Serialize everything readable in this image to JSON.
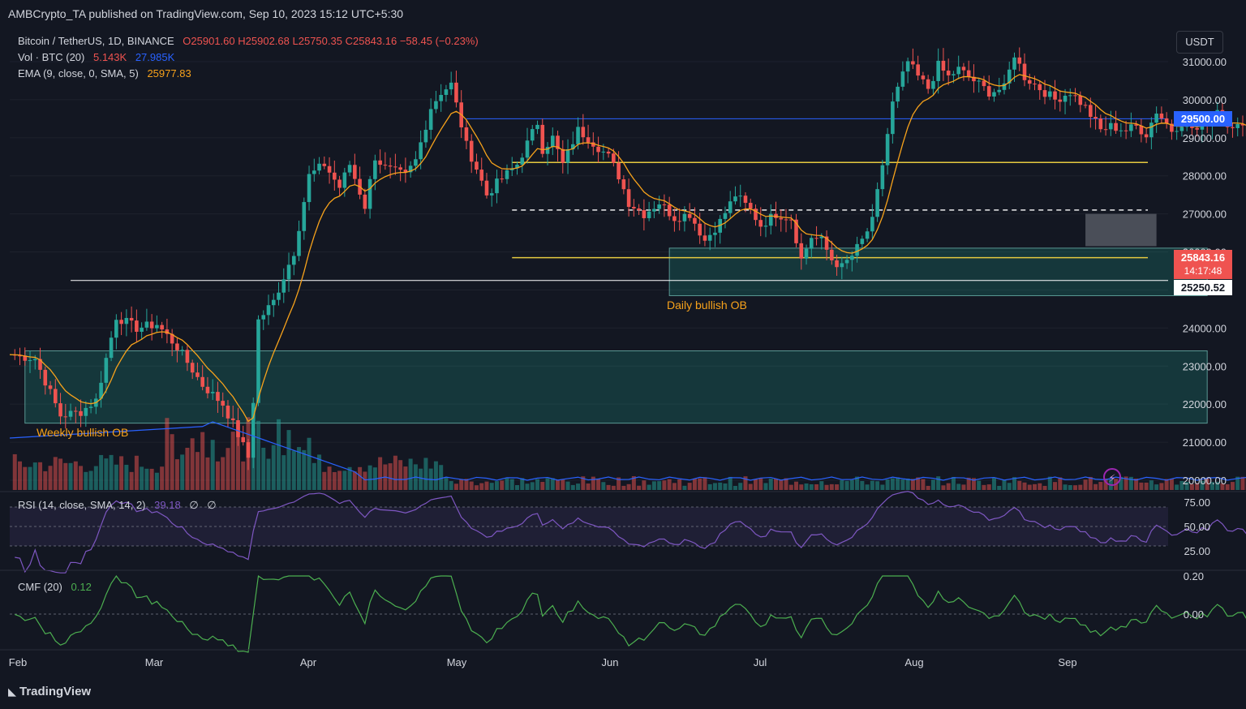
{
  "header": {
    "publisher": "AMBCrypto_TA published on TradingView.com, Sep 10, 2023 15:12 UTC+5:30",
    "symbol": "Bitcoin / TetherUS, 1D, BINANCE",
    "ohlc": {
      "o": "O25901.60",
      "h": "H25902.68",
      "l": "L25750.35",
      "c": "C25843.16",
      "chg": "−58.45 (−0.23%)"
    },
    "vol": {
      "label": "Vol · BTC (20)",
      "v1": "5.143K",
      "v2": "27.985K"
    },
    "ema": {
      "label": "EMA (9, close, 0, SMA, 5)",
      "value": "25977.83"
    }
  },
  "currency_button": "USDT",
  "price_axis": [
    "31000.00",
    "30000.00",
    "29000.00",
    "28000.00",
    "27000.00",
    "26000.00",
    "25000.00",
    "24000.00",
    "23000.00",
    "22000.00",
    "21000.00",
    "20000.00"
  ],
  "price_tags": {
    "level_29500": "29500.00",
    "last_price": "25843.16",
    "countdown": "14:17:48",
    "level_25250": "25250.52"
  },
  "annotations": {
    "daily_ob": "Daily bullish OB",
    "weekly_ob": "Weekly bullish OB"
  },
  "rsi": {
    "label": "RSI (14, close, SMA, 14, 2)",
    "value": "39.18",
    "extra1": "∅",
    "extra2": "∅",
    "axis": [
      "75.00",
      "50.00",
      "25.00"
    ]
  },
  "cmf": {
    "label": "CMF (20)",
    "value": "0.12",
    "axis": [
      "0.20",
      "0.00"
    ]
  },
  "time_axis": [
    "Feb",
    "Mar",
    "Apr",
    "May",
    "Jun",
    "Jul",
    "Aug",
    "Sep"
  ],
  "footer": {
    "logo": "TradingView"
  },
  "colors": {
    "bg": "#131722",
    "up": "#26a69a",
    "down": "#ef5350",
    "ema": "#f7a21b",
    "rsi": "#7e57c2",
    "cmf": "#4caf50",
    "yellow": "#e5c940",
    "blue": "#2962ff",
    "vol_ma": "#2962ff"
  },
  "chart_data": {
    "type": "candlestick",
    "title": "Bitcoin / TetherUS, 1D, BINANCE",
    "ylim": [
      19800,
      31900
    ],
    "levels": {
      "resistance_blue": 29500,
      "resistance_yellow": 28350,
      "dashed_white": 27100,
      "support_yellow": 25850,
      "support_white": 25250
    },
    "zones": [
      {
        "name": "Daily bullish OB",
        "from": "2023-06-10",
        "to": "2023-09-24",
        "low": 24850,
        "high": 26100
      },
      {
        "name": "Weekly bullish OB",
        "from": "2023-02-03",
        "to": "2023-09-24",
        "low": 21500,
        "high": 23400
      },
      {
        "name": "gray box",
        "from": "2023-08-31",
        "to": "2023-09-14",
        "low": 26150,
        "high": 27000
      }
    ],
    "x_start": "2023-01-31",
    "x_end": "2023-09-10",
    "close_anchors": [
      [
        0,
        23300
      ],
      [
        5,
        23200
      ],
      [
        10,
        21700
      ],
      [
        14,
        21800
      ],
      [
        17,
        22100
      ],
      [
        21,
        24300
      ],
      [
        25,
        24000
      ],
      [
        29,
        24100
      ],
      [
        33,
        23500
      ],
      [
        38,
        22500
      ],
      [
        42,
        22000
      ],
      [
        45,
        21200
      ],
      [
        47,
        20600
      ],
      [
        48,
        22100
      ],
      [
        49,
        24200
      ],
      [
        52,
        24700
      ],
      [
        56,
        26000
      ],
      [
        59,
        28000
      ],
      [
        62,
        28300
      ],
      [
        65,
        27700
      ],
      [
        67,
        28300
      ],
      [
        70,
        27200
      ],
      [
        72,
        28500
      ],
      [
        74,
        28200
      ],
      [
        78,
        28000
      ],
      [
        80,
        28400
      ],
      [
        83,
        29800
      ],
      [
        85,
        30200
      ],
      [
        87,
        30400
      ],
      [
        90,
        28800
      ],
      [
        92,
        28200
      ],
      [
        94,
        27500
      ],
      [
        96,
        27800
      ],
      [
        100,
        28300
      ],
      [
        104,
        29400
      ],
      [
        105,
        28700
      ],
      [
        107,
        29000
      ],
      [
        109,
        28300
      ],
      [
        112,
        29200
      ],
      [
        114,
        29000
      ],
      [
        118,
        28500
      ],
      [
        120,
        28000
      ],
      [
        122,
        27300
      ],
      [
        125,
        27000
      ],
      [
        128,
        27300
      ],
      [
        131,
        26900
      ],
      [
        134,
        27000
      ],
      [
        137,
        26300
      ],
      [
        140,
        26800
      ],
      [
        143,
        27500
      ],
      [
        146,
        27100
      ],
      [
        148,
        26700
      ],
      [
        151,
        27000
      ],
      [
        154,
        26900
      ],
      [
        156,
        25800
      ],
      [
        158,
        26400
      ],
      [
        160,
        26300
      ],
      [
        162,
        25800
      ],
      [
        164,
        25600
      ],
      [
        166,
        25900
      ],
      [
        168,
        26300
      ],
      [
        170,
        26800
      ],
      [
        172,
        28300
      ],
      [
        174,
        29900
      ],
      [
        177,
        31000
      ],
      [
        179,
        30600
      ],
      [
        181,
        30300
      ],
      [
        183,
        30900
      ],
      [
        185,
        30600
      ],
      [
        187,
        30800
      ],
      [
        190,
        30500
      ],
      [
        193,
        30200
      ],
      [
        196,
        30300
      ],
      [
        198,
        31200
      ],
      [
        200,
        30600
      ],
      [
        203,
        30300
      ],
      [
        206,
        30000
      ],
      [
        209,
        30200
      ],
      [
        212,
        29800
      ],
      [
        215,
        29200
      ],
      [
        217,
        29300
      ],
      [
        220,
        29200
      ],
      [
        222,
        29300
      ],
      [
        224,
        29100
      ],
      [
        226,
        29700
      ],
      [
        229,
        29200
      ],
      [
        231,
        29400
      ],
      [
        234,
        29200
      ],
      [
        236,
        29400
      ],
      [
        238,
        29800
      ],
      [
        240,
        29400
      ],
      [
        242,
        29300
      ],
      [
        245,
        29100
      ],
      [
        246,
        28700
      ],
      [
        247,
        26600
      ],
      [
        249,
        26100
      ],
      [
        251,
        26300
      ],
      [
        253,
        26000
      ],
      [
        255,
        26200
      ],
      [
        257,
        26100
      ],
      [
        258,
        26500
      ],
      [
        260,
        26100
      ],
      [
        261,
        26000
      ],
      [
        263,
        27700
      ],
      [
        264,
        26900
      ],
      [
        265,
        25900
      ],
      [
        268,
        25800
      ],
      [
        270,
        25700
      ],
      [
        272,
        25700
      ],
      [
        273,
        25800
      ],
      [
        274,
        25900
      ],
      [
        275,
        26200
      ],
      [
        276,
        25900
      ],
      [
        277,
        25843
      ]
    ]
  }
}
